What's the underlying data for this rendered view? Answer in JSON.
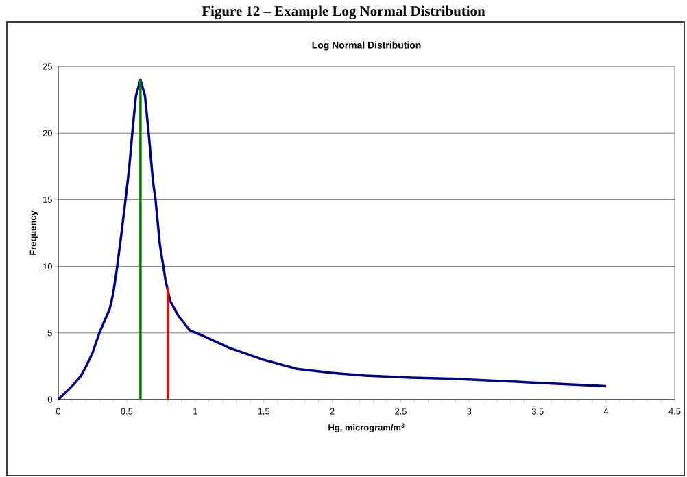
{
  "chart_data": {
    "type": "line",
    "title": "Log Normal Distribution",
    "xlabel": "Hg, microgram/m$^{3}$",
    "ylabel": "Frequency",
    "annotations": [
      "Figure 12 – Example Log Normal Distribution"
    ],
    "series": [
      {
        "color": "#000080",
        "x": [
          0,
          0.1,
          0.167,
          0.208,
          0.25,
          0.3,
          0.375,
          0.4,
          0.425,
          0.459,
          0.492,
          0.517,
          0.542,
          0.567,
          0.6,
          0.633,
          0.658,
          0.692,
          0.709,
          0.742,
          0.784,
          0.817,
          0.876,
          0.959,
          1.076,
          1.243,
          1.493,
          1.743,
          1.993,
          2.243,
          2.578,
          2.911,
          2.995,
          3.41,
          4.0
        ],
        "values": [
          0,
          1.0,
          1.8,
          2.6,
          3.5,
          5.0,
          6.8,
          7.9,
          9.6,
          12.3,
          15.1,
          17.3,
          20.2,
          22.8,
          24.0,
          22.8,
          20.2,
          16.3,
          15.1,
          11.6,
          8.9,
          7.4,
          6.3,
          5.2,
          4.7,
          3.9,
          3.0,
          2.3,
          2.0,
          1.8,
          1.65,
          1.55,
          1.5,
          1.3,
          1.0
        ]
      },
      {
        "type": "line",
        "color": "#008000",
        "x": [
          0.6,
          0.6
        ],
        "values": [
          0,
          24.0
        ]
      },
      {
        "type": "line",
        "color": "#ff0000",
        "x": [
          0.8,
          0.8
        ],
        "values": [
          0,
          8.4
        ]
      }
    ],
    "xlim": [
      0,
      4.5
    ],
    "ylim": [
      0,
      25
    ],
    "xticks": [
      0,
      0.5,
      1,
      1.5,
      2,
      2.5,
      3,
      3.5,
      4,
      4.5
    ],
    "yticks": [
      0,
      5,
      10,
      15,
      20,
      25
    ],
    "grid": "y",
    "marker": "none",
    "line_style": "solid"
  }
}
